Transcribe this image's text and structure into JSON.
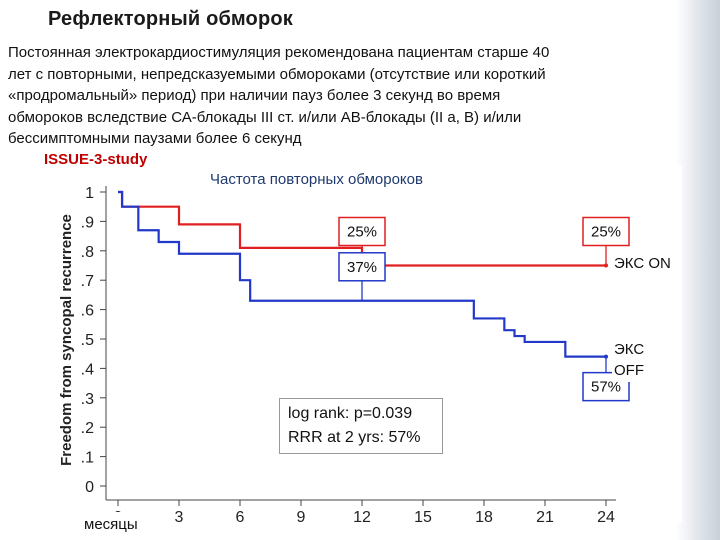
{
  "slide": {
    "title": "Рефлекторный обморок",
    "body_lines": [
      "Постоянная электрокардиостимуляция рекомендована пациентам старше 40",
      "лет с повторными, непредсказуемыми обмороками (отсутствие или короткий",
      "«продромальный» период) при наличии   пауз более 3 секунд во время",
      "обмороков вследствие СА-блокады III ст. и/или АВ-блокады  (II a, B) и/или",
      "бессимптомными паузами более 6 секунд"
    ],
    "study_label": "ISSUE-3-study"
  },
  "chart_data": {
    "type": "line",
    "step": true,
    "title": "Частота повторных обмороков",
    "xlabel": "месяцы",
    "ylabel": "Freedom from syncopal recurrence",
    "xlim": [
      0,
      24
    ],
    "ylim": [
      0,
      1
    ],
    "x_ticks": [
      0,
      3,
      6,
      9,
      12,
      15,
      18,
      21,
      24
    ],
    "x_tick_labels": [
      "0",
      "3",
      "6",
      "9",
      "12",
      "15",
      "18",
      "21",
      "24"
    ],
    "y_ticks": [
      0,
      0.1,
      0.2,
      0.3,
      0.4,
      0.5,
      0.6,
      0.7,
      0.8,
      0.9,
      1
    ],
    "y_tick_labels": [
      "0",
      ".1",
      ".2",
      ".3",
      ".4",
      ".5",
      ".6",
      ".7",
      ".8",
      ".9",
      "1"
    ],
    "grid": false,
    "series": [
      {
        "name": "ЭКС ON",
        "color": "#e02020",
        "x": [
          0,
          0.2,
          1,
          3,
          6,
          12,
          24
        ],
        "y": [
          1.0,
          0.95,
          0.95,
          0.89,
          0.81,
          0.75,
          0.75
        ]
      },
      {
        "name": "ЭКС OFF",
        "color": "#2238c8",
        "x": [
          0,
          0.2,
          1,
          2,
          3,
          6,
          6.5,
          12,
          17.5,
          19,
          19.5,
          20,
          22,
          24
        ],
        "y": [
          1.0,
          0.95,
          0.87,
          0.83,
          0.79,
          0.7,
          0.63,
          0.63,
          0.57,
          0.53,
          0.51,
          0.49,
          0.44,
          0.44
        ]
      }
    ],
    "annotations": [
      {
        "text": "25%",
        "series": "ЭКС ON",
        "x": 12,
        "color": "#e02020"
      },
      {
        "text": "25%",
        "series": "ЭКС ON",
        "x": 24,
        "color": "#e02020"
      },
      {
        "text": "37%",
        "series": "ЭКС OFF",
        "x": 12,
        "color": "#2238c8"
      },
      {
        "text": "57%",
        "series": "ЭКС OFF",
        "x": 24,
        "color": "#2238c8"
      }
    ],
    "stats": [
      "log rank: p=0.039",
      "RRR at 2 yrs: 57%"
    ],
    "series_labels": {
      "on": "ЭКС ON",
      "off_line1": "ЭКС",
      "off_line2": "OFF"
    }
  }
}
